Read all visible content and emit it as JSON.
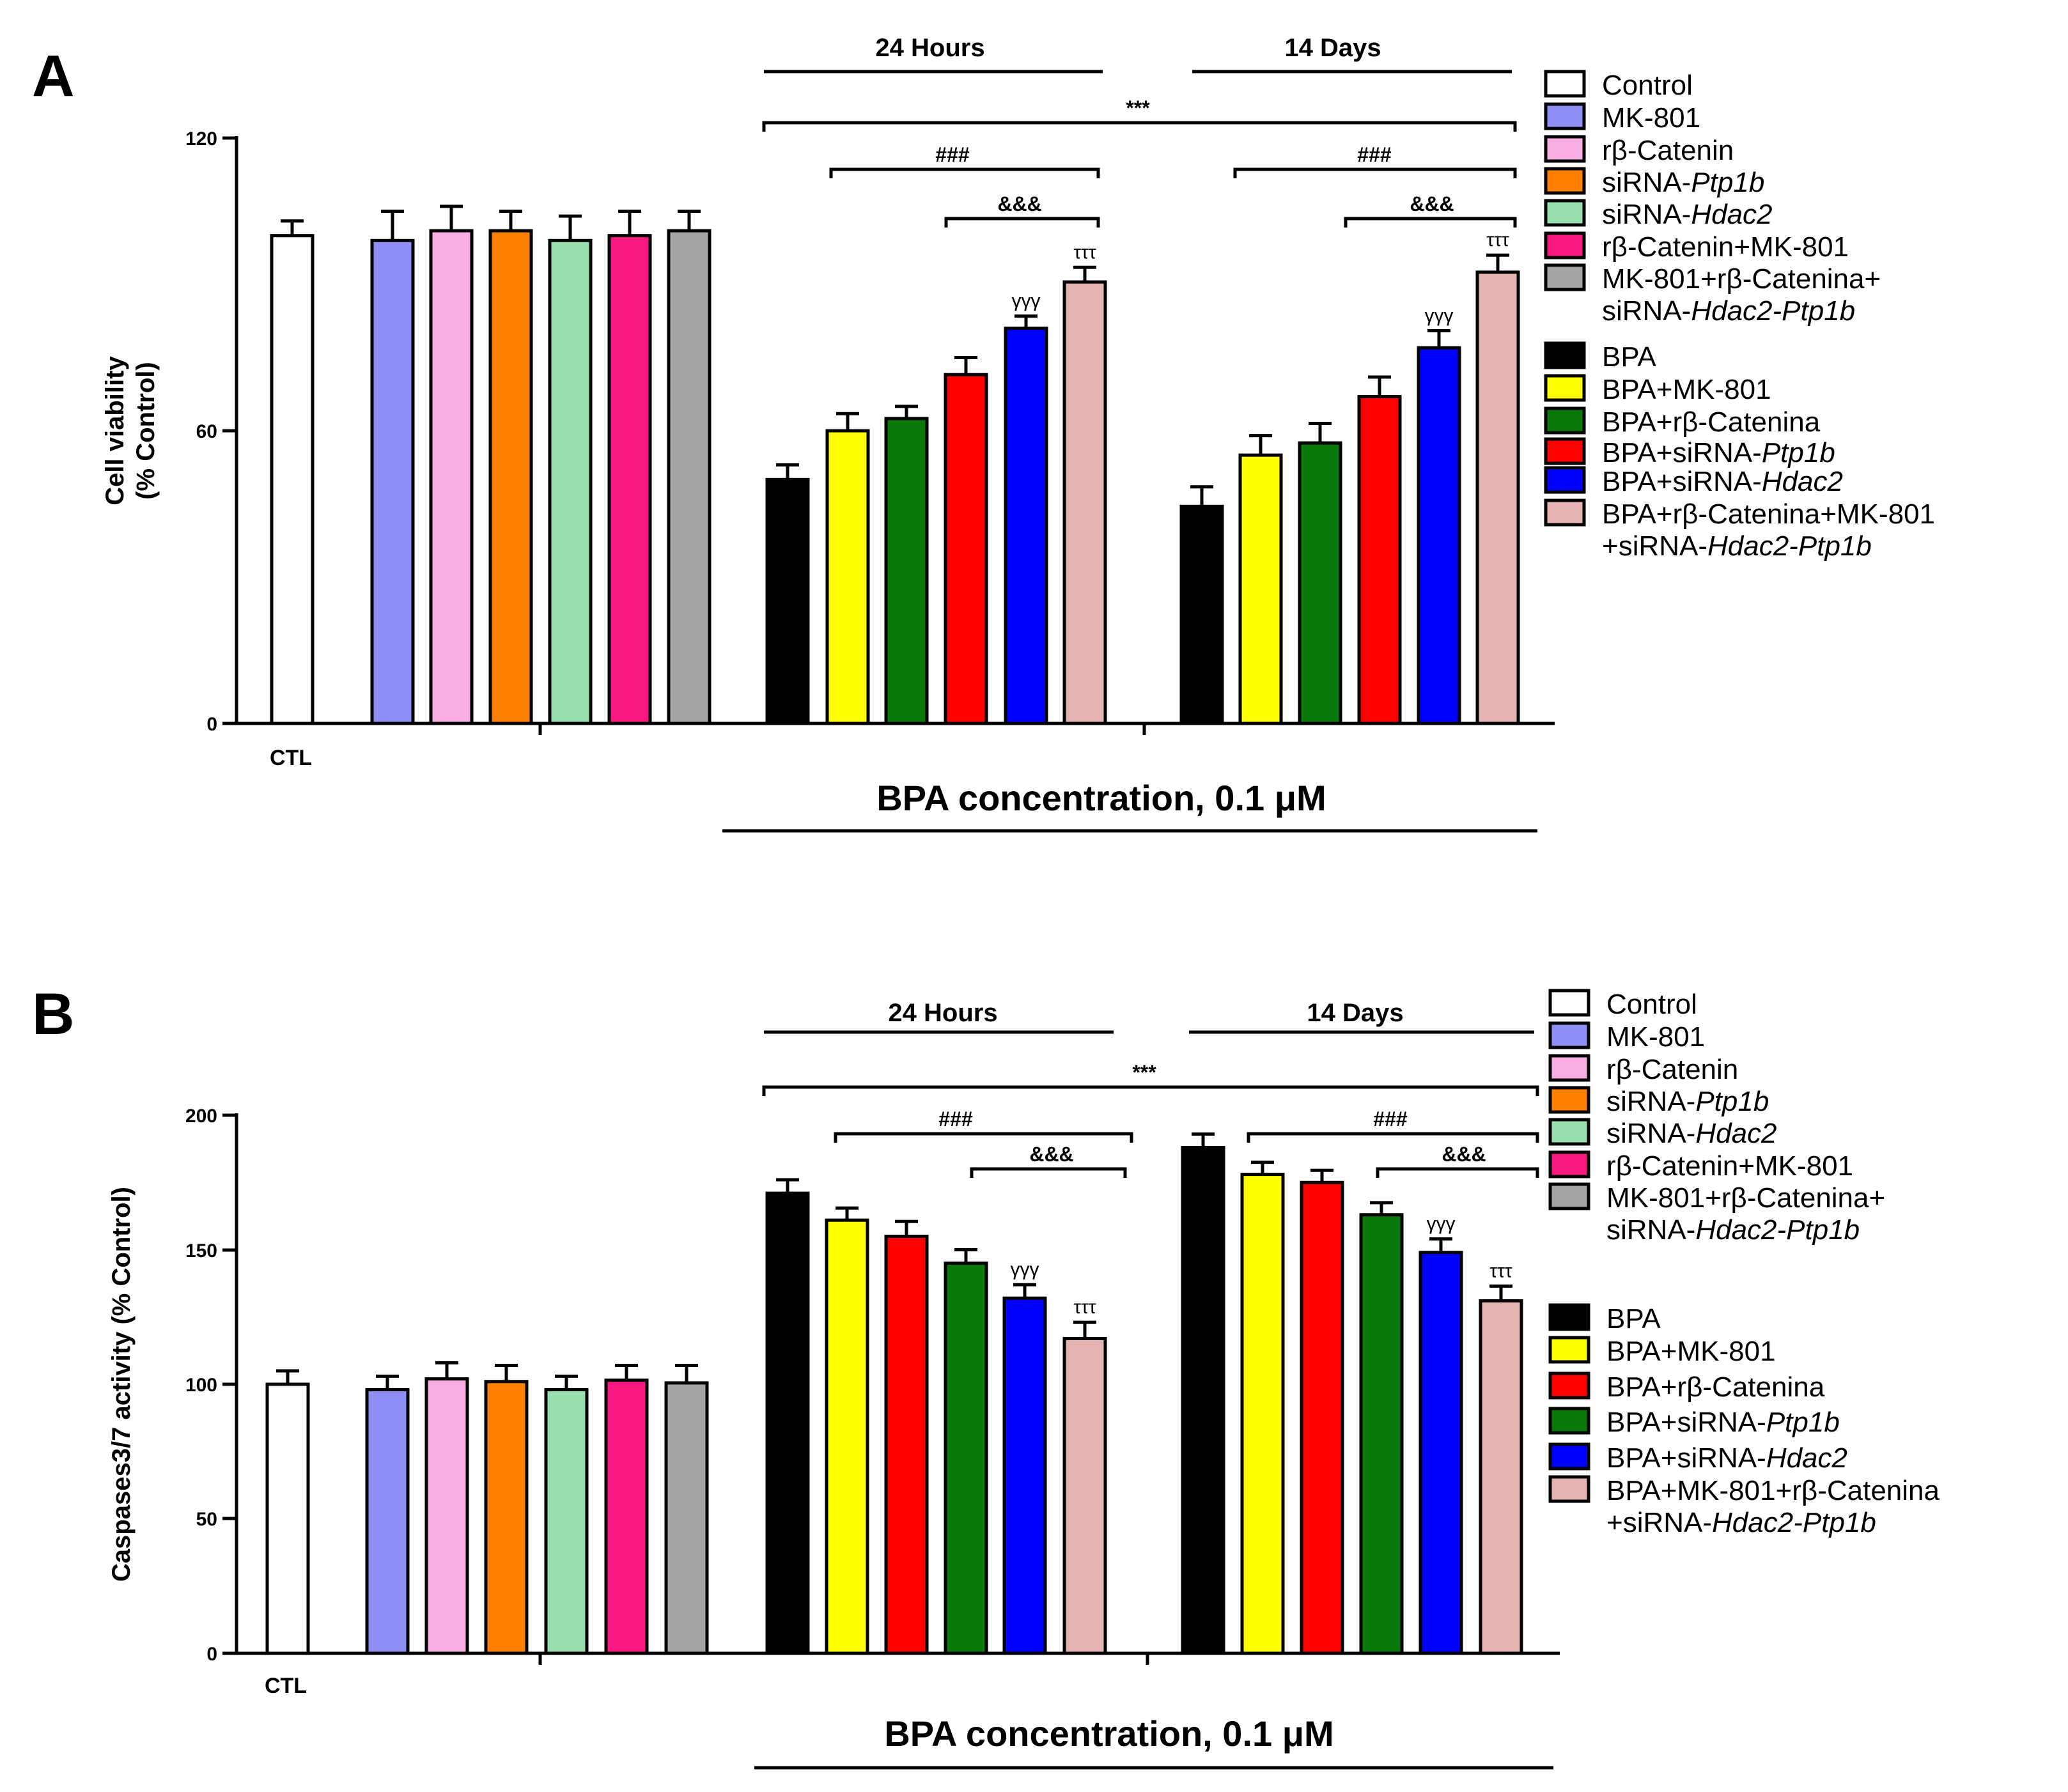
{
  "chart_data": [
    {
      "panel_label": "A",
      "type": "bar",
      "ylabel_line1": "Cell viability",
      "ylabel_line2": "(% Control)",
      "ylim": [
        0,
        120
      ],
      "yticks": [
        "0",
        "60",
        "120"
      ],
      "ctl_label": "CTL",
      "xlabel": "BPA concentration, 0.1  μM",
      "group_labels": [
        "24 Hours",
        "14 Days"
      ],
      "controls": [
        {
          "name": "Control",
          "value": 100,
          "error": 3
        },
        {
          "name": "MK-801",
          "value": 99,
          "error": 6
        },
        {
          "name": "rβ-Catenin",
          "value": 101,
          "error": 5
        },
        {
          "name": "siRNA-Ptp1b",
          "value": 101,
          "error": 4
        },
        {
          "name": "siRNA-Hdac2",
          "value": 99,
          "error": 5
        },
        {
          "name": "rβ-Catenin+MK-801",
          "value": 100,
          "error": 5
        },
        {
          "name": "MK-801+rβ-Catenina+siRNA-Hdac2-Ptp1b",
          "value": 101,
          "error": 4
        }
      ],
      "series_24h": [
        {
          "name": "BPA",
          "value": 50,
          "error": 3
        },
        {
          "name": "BPA+MK-801",
          "value": 60,
          "error": 3.5
        },
        {
          "name": "BPA+rβ-Catenina",
          "value": 62.5,
          "error": 2.5
        },
        {
          "name": "BPA+siRNA-Ptp1b",
          "value": 71.5,
          "error": 3.5
        },
        {
          "name": "BPA+siRNA-Hdac2",
          "value": 81,
          "error": 2.5
        },
        {
          "name": "BPA+rβ-Catenina+MK-801+siRNA-Hdac2-Ptp1b",
          "value": 90.5,
          "error": 3
        }
      ],
      "series_14d": [
        {
          "name": "BPA",
          "value": 44.5,
          "error": 4
        },
        {
          "name": "BPA+MK-801",
          "value": 55,
          "error": 4
        },
        {
          "name": "BPA+rβ-Catenina",
          "value": 57.5,
          "error": 4
        },
        {
          "name": "BPA+siRNA-Ptp1b",
          "value": 67,
          "error": 4
        },
        {
          "name": "BPA+siRNA-Hdac2",
          "value": 77,
          "error": 3.5
        },
        {
          "name": "BPA+rβ-Catenina+MK-801+siRNA-Hdac2-Ptp1b",
          "value": 92.5,
          "error": 3.5
        }
      ],
      "annotations": {
        "all": "***",
        "hash": "###",
        "amp": "&&&",
        "gamma": "γγγ",
        "tau": "τττ"
      },
      "legend": {
        "top": [
          {
            "text": "Control",
            "color": "#ffffff"
          },
          {
            "text": "MK-801",
            "color": "#8e8ef5"
          },
          {
            "text": "rβ-Catenin",
            "color": "#f9aee4"
          },
          {
            "text": "siRNA-",
            "italic": "Ptp1b",
            "color": "#ff7f00"
          },
          {
            "text": "siRNA-",
            "italic": "Hdac2",
            "color": "#99e0ae"
          },
          {
            "text": "rβ-Catenin+MK-801",
            "color": "#f7197f"
          },
          {
            "text": "MK-801+rβ-Catenina+",
            "line2_text": "siRNA-",
            "line2_italic": "Hdac2-Ptp1b",
            "color": "#a5a5a5"
          }
        ],
        "bottom": [
          {
            "text": "BPA",
            "color": "#000000"
          },
          {
            "text": "BPA+MK-801",
            "color": "#ffff00"
          },
          {
            "text": "BPA+rβ-Catenina",
            "color": "#097a09"
          },
          {
            "text": "BPA+siRNA-",
            "italic": "Ptp1b",
            "color": "#ff0000"
          },
          {
            "text": "BPA+siRNA-",
            "italic": "Hdac2",
            "color": "#0000ff"
          },
          {
            "text": "BPA+rβ-Catenina+MK-801",
            "line2_text": "+siRNA-",
            "line2_italic": "Hdac2-Ptp1b",
            "color": "#e6b3b3"
          }
        ]
      }
    },
    {
      "panel_label": "B",
      "type": "bar",
      "ylabel_line1": "Caspases3/7 activity (% Control)",
      "ylabel_line2": "",
      "ylim": [
        0,
        200
      ],
      "yticks": [
        "0",
        "50",
        "100",
        "150",
        "200"
      ],
      "ctl_label": "CTL",
      "xlabel": "BPA concentration, 0.1  μM",
      "group_labels": [
        "24 Hours",
        "14 Days"
      ],
      "controls": [
        {
          "name": "Control",
          "value": 100,
          "error": 5
        },
        {
          "name": "MK-801",
          "value": 98,
          "error": 5
        },
        {
          "name": "rβ-Catenin",
          "value": 102,
          "error": 6
        },
        {
          "name": "siRNA-Ptp1b",
          "value": 101,
          "error": 6
        },
        {
          "name": "siRNA-Hdac2",
          "value": 98,
          "error": 5
        },
        {
          "name": "rβ-Catenin+MK-801",
          "value": 101.5,
          "error": 5.5
        },
        {
          "name": "MK-801+rβ-Catenina+siRNA-Hdac2-Ptp1b",
          "value": 100.5,
          "error": 6.5
        }
      ],
      "series_24h": [
        {
          "name": "BPA",
          "value": 171,
          "error": 5
        },
        {
          "name": "BPA+MK-801",
          "value": 161,
          "error": 4.5
        },
        {
          "name": "BPA+rβ-Catenina",
          "value": 155,
          "error": 5.5
        },
        {
          "name": "BPA+siRNA-Ptp1b",
          "value": 145,
          "error": 5
        },
        {
          "name": "BPA+siRNA-Hdac2",
          "value": 132,
          "error": 5
        },
        {
          "name": "BPA+MK-801+rβ-Catenina+siRNA-Hdac2-Ptp1b",
          "value": 117,
          "error": 6
        }
      ],
      "series_14d": [
        {
          "name": "BPA",
          "value": 188,
          "error": 5
        },
        {
          "name": "BPA+MK-801",
          "value": 178,
          "error": 4.5
        },
        {
          "name": "BPA+rβ-Catenina",
          "value": 175,
          "error": 4.5
        },
        {
          "name": "BPA+siRNA-Ptp1b",
          "value": 163,
          "error": 4.5
        },
        {
          "name": "BPA+siRNA-Hdac2",
          "value": 149,
          "error": 5
        },
        {
          "name": "BPA+MK-801+rβ-Catenina+siRNA-Hdac2-Ptp1b",
          "value": 131,
          "error": 5.5
        }
      ],
      "annotations": {
        "all": "***",
        "hash": "###",
        "amp": "&&&",
        "gamma": "γγγ",
        "tau": "τττ"
      },
      "legend": {
        "top": [
          {
            "text": "Control",
            "color": "#ffffff"
          },
          {
            "text": "MK-801",
            "color": "#8e8ef5"
          },
          {
            "text": "rβ-Catenin",
            "color": "#f9aee4"
          },
          {
            "text": "siRNA-",
            "italic": "Ptp1b",
            "color": "#ff7f00"
          },
          {
            "text": "siRNA-",
            "italic": "Hdac2",
            "color": "#99e0ae"
          },
          {
            "text": "rβ-Catenin+MK-801",
            "color": "#f7197f"
          },
          {
            "text": "MK-801+rβ-Catenina+",
            "line2_text": "siRNA-",
            "line2_italic": "Hdac2-Ptp1b",
            "color": "#a5a5a5"
          }
        ],
        "bottom": [
          {
            "text": "BPA",
            "color": "#000000"
          },
          {
            "text": "BPA+MK-801",
            "color": "#ffff00"
          },
          {
            "text": "BPA+rβ-Catenina",
            "color": "#ff0000"
          },
          {
            "text": "BPA+siRNA-",
            "italic": "Ptp1b",
            "color": "#097a09"
          },
          {
            "text": "BPA+siRNA-",
            "italic": "Hdac2",
            "color": "#0000ff"
          },
          {
            "text": "BPA+MK-801+rβ-Catenina",
            "line2_text": "+siRNA-",
            "line2_italic": "Hdac2-Ptp1b",
            "color": "#e6b3b3"
          }
        ]
      }
    }
  ]
}
